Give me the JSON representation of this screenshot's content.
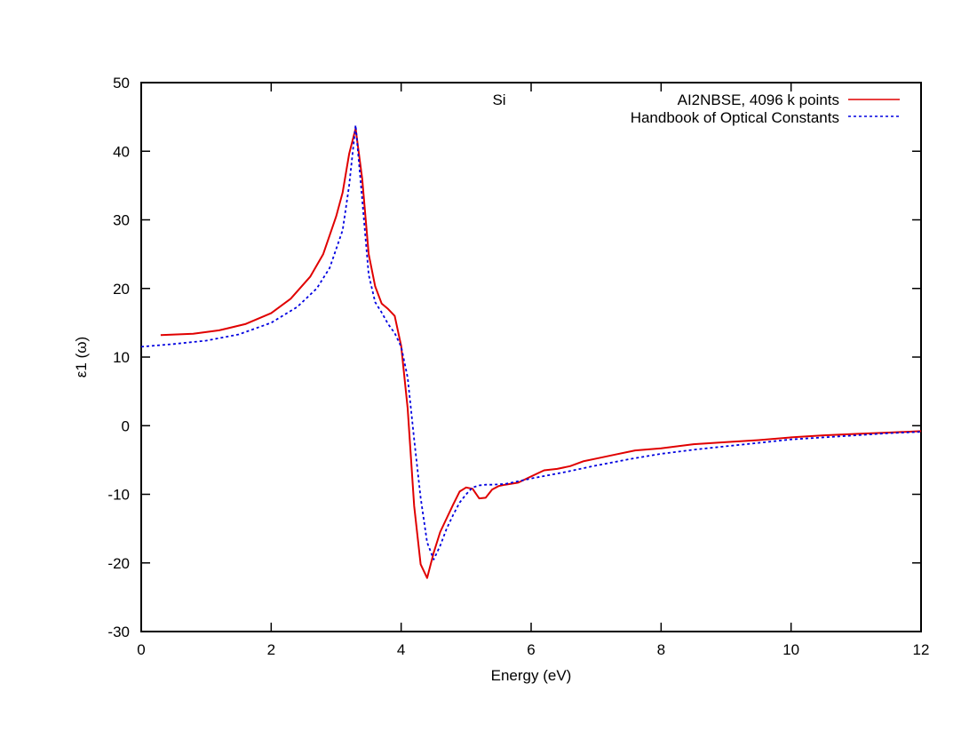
{
  "chart_data": {
    "type": "line",
    "title": "Si",
    "xlabel": "Energy (eV)",
    "ylabel": "ε1 (ω)",
    "xlim": [
      0,
      12
    ],
    "ylim": [
      -30,
      50
    ],
    "xticks": [
      0,
      2,
      4,
      6,
      8,
      10,
      12
    ],
    "yticks": [
      -30,
      -20,
      -10,
      0,
      10,
      20,
      30,
      40,
      50
    ],
    "grid": false,
    "legend_position": "top-right",
    "series": [
      {
        "name": "AI2NBSE, 4096 k points",
        "color": "#e00000",
        "dash": "solid",
        "x": [
          0.3,
          0.8,
          1.2,
          1.6,
          2.0,
          2.3,
          2.6,
          2.8,
          3.0,
          3.1,
          3.2,
          3.3,
          3.4,
          3.5,
          3.6,
          3.7,
          3.8,
          3.9,
          4.0,
          4.1,
          4.2,
          4.3,
          4.4,
          4.5,
          4.6,
          4.7,
          4.8,
          4.9,
          5.0,
          5.1,
          5.2,
          5.3,
          5.4,
          5.5,
          5.6,
          5.8,
          6.0,
          6.2,
          6.4,
          6.6,
          6.8,
          7.0,
          7.3,
          7.6,
          8.0,
          8.5,
          9.0,
          9.5,
          10.0,
          10.5,
          11.0,
          11.5,
          12.0
        ],
        "y": [
          13.2,
          13.4,
          13.9,
          14.8,
          16.4,
          18.5,
          21.7,
          25.0,
          30.5,
          34.0,
          39.6,
          43.3,
          36.0,
          25.0,
          20.3,
          17.8,
          17.0,
          16.0,
          11.6,
          2.5,
          -11.7,
          -20.2,
          -22.2,
          -18.5,
          -15.5,
          -13.5,
          -11.5,
          -9.6,
          -9.0,
          -9.2,
          -10.6,
          -10.5,
          -9.3,
          -8.8,
          -8.6,
          -8.3,
          -7.4,
          -6.5,
          -6.3,
          -5.9,
          -5.2,
          -4.8,
          -4.2,
          -3.6,
          -3.3,
          -2.7,
          -2.4,
          -2.1,
          -1.7,
          -1.4,
          -1.2,
          -1.0,
          -0.8
        ]
      },
      {
        "name": "Handbook of Optical Constants",
        "color": "#0000e0",
        "dash": "dotted",
        "x": [
          0.0,
          0.5,
          1.0,
          1.5,
          2.0,
          2.4,
          2.7,
          2.9,
          3.1,
          3.2,
          3.3,
          3.4,
          3.5,
          3.6,
          3.7,
          3.8,
          3.9,
          4.0,
          4.1,
          4.2,
          4.3,
          4.4,
          4.5,
          4.6,
          4.7,
          4.8,
          4.9,
          5.0,
          5.1,
          5.2,
          5.3,
          5.4,
          5.6,
          5.8,
          6.0,
          6.5,
          7.0,
          7.5,
          8.0,
          8.5,
          9.0,
          9.5,
          10.0,
          10.5,
          11.0,
          11.5,
          12.0
        ],
        "y": [
          11.5,
          11.9,
          12.4,
          13.3,
          15.0,
          17.3,
          20.0,
          23.0,
          28.5,
          35.0,
          43.8,
          33.0,
          22.0,
          18.0,
          16.5,
          14.8,
          13.5,
          11.5,
          7.0,
          -2.0,
          -10.5,
          -17.0,
          -19.5,
          -17.5,
          -15.0,
          -13.0,
          -11.2,
          -10.0,
          -9.0,
          -8.7,
          -8.6,
          -8.6,
          -8.5,
          -8.1,
          -7.7,
          -6.8,
          -5.8,
          -4.9,
          -4.1,
          -3.5,
          -3.0,
          -2.5,
          -2.0,
          -1.7,
          -1.4,
          -1.1,
          -0.9
        ]
      }
    ]
  }
}
